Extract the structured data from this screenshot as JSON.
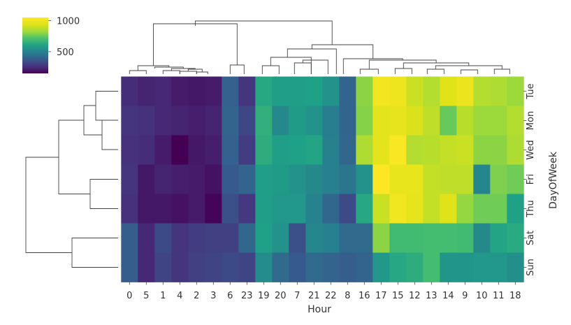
{
  "chart_data": {
    "type": "heatmap",
    "subtype": "clustermap",
    "title": "",
    "xlabel": "Hour",
    "ylabel": "DayOfWeek",
    "colormap": "viridis",
    "colorbar": {
      "range": [
        150,
        1050
      ],
      "ticks": [
        1000,
        500
      ],
      "tick_labels": [
        "1000",
        "500"
      ],
      "placement": "top-left"
    },
    "dendrograms": {
      "row": "left",
      "column": "top"
    },
    "columns": [
      "0",
      "5",
      "1",
      "4",
      "2",
      "3",
      "6",
      "23",
      "19",
      "20",
      "7",
      "21",
      "22",
      "8",
      "16",
      "17",
      "15",
      "12",
      "13",
      "14",
      "9",
      "10",
      "11",
      "18"
    ],
    "rows": [
      "Tue",
      "Mon",
      "Wed",
      "Fri",
      "Thu",
      "Sat",
      "Sun"
    ],
    "values": [
      [
        250,
        230,
        240,
        210,
        200,
        210,
        390,
        270,
        620,
        590,
        590,
        600,
        550,
        400,
        800,
        1010,
        1000,
        900,
        860,
        950,
        990,
        860,
        850,
        820
      ],
      [
        270,
        260,
        240,
        230,
        220,
        230,
        400,
        320,
        650,
        520,
        580,
        550,
        480,
        400,
        790,
        960,
        970,
        930,
        880,
        750,
        870,
        820,
        820,
        860
      ],
      [
        260,
        250,
        210,
        150,
        200,
        220,
        390,
        290,
        640,
        590,
        600,
        610,
        490,
        410,
        850,
        960,
        1040,
        860,
        870,
        890,
        900,
        800,
        800,
        850
      ],
      [
        270,
        200,
        230,
        220,
        210,
        190,
        370,
        400,
        590,
        580,
        550,
        520,
        490,
        460,
        550,
        1050,
        980,
        980,
        890,
        880,
        880,
        510,
        780,
        760
      ],
      [
        260,
        200,
        200,
        190,
        210,
        160,
        340,
        280,
        590,
        570,
        570,
        500,
        410,
        330,
        620,
        900,
        1010,
        970,
        890,
        950,
        810,
        760,
        760,
        600
      ],
      [
        380,
        240,
        330,
        270,
        290,
        300,
        300,
        410,
        600,
        550,
        340,
        510,
        490,
        420,
        420,
        800,
        690,
        690,
        700,
        700,
        690,
        520,
        610,
        630
      ],
      [
        380,
        240,
        310,
        270,
        300,
        310,
        330,
        310,
        530,
        420,
        370,
        420,
        400,
        380,
        400,
        570,
        620,
        640,
        700,
        560,
        560,
        570,
        570,
        540
      ]
    ]
  }
}
